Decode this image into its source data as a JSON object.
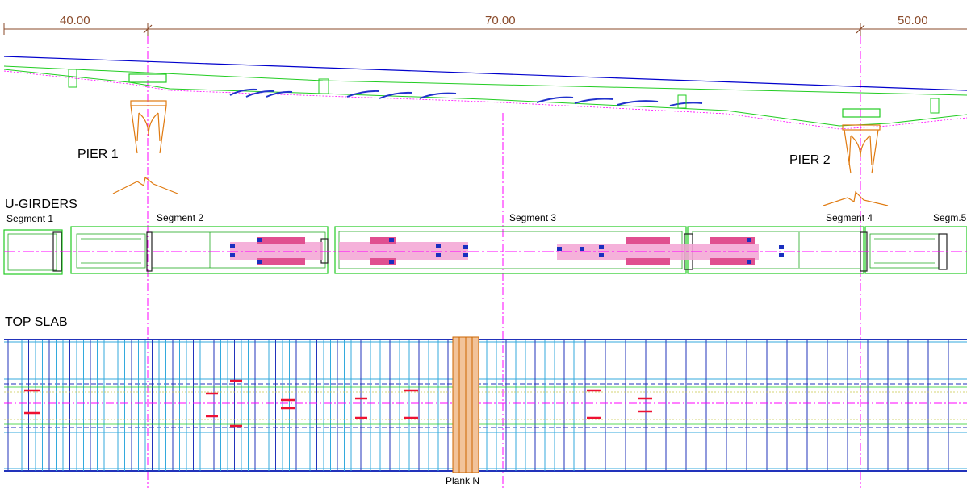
{
  "dimensions": {
    "span1": "40.00",
    "span2": "70.00",
    "span3": "50.00"
  },
  "elevation": {
    "pier1_label": "PIER 1",
    "pier2_label": "PIER 2"
  },
  "girders": {
    "section_title": "U-GIRDERS",
    "segments": [
      "Segment 1",
      "Segment 2",
      "Segment 3",
      "Segment 4",
      "Segm.5"
    ]
  },
  "slab": {
    "section_title": "TOP SLAB",
    "plank_label": "Plank N"
  },
  "colors": {
    "dimension_line": "#8a4a2a",
    "deck_line": "#0000cc",
    "girder_outline": "#22cc22",
    "centerline": "#ff00ff",
    "pier": "#e07a10",
    "slab_blue": "#2233bb",
    "slab_cyan": "#33aadd",
    "plank": "#cc6600"
  }
}
